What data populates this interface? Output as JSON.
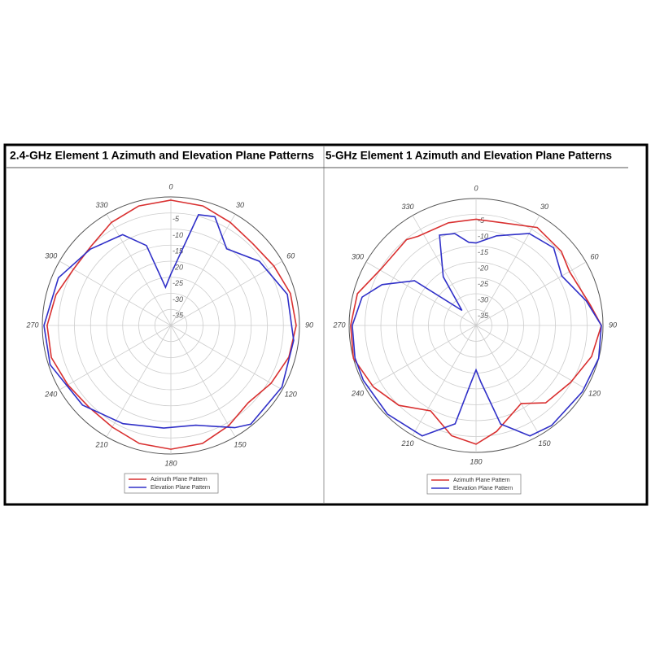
{
  "chart_data": [
    {
      "type": "polar",
      "title": "2.4-GHz Element 1 Azimuth and Elevation Plane Patterns",
      "rlim": [
        -40,
        0
      ],
      "rticks": [
        -5,
        -10,
        -15,
        -20,
        -25,
        -30,
        -35
      ],
      "thetaticks": [
        0,
        30,
        60,
        90,
        120,
        150,
        180,
        210,
        240,
        270,
        300,
        330
      ],
      "legend": "bottom",
      "series": [
        {
          "name": "Azimuth Plane Pattern",
          "color": "#d93030",
          "theta": [
            0,
            15,
            30,
            45,
            60,
            75,
            90,
            105,
            120,
            135,
            150,
            165,
            180,
            195,
            210,
            225,
            240,
            255,
            270,
            285,
            300,
            315,
            330,
            345
          ],
          "values": [
            -1,
            -1.5,
            -3,
            -4,
            -3,
            -1.5,
            -1,
            -2,
            -4,
            -6,
            -4,
            -2,
            -1.5,
            -2,
            -3.5,
            -4,
            -3,
            -1.5,
            -1.5,
            -3,
            -5,
            -5,
            -3,
            -1.5
          ]
        },
        {
          "name": "Elevation Plane Pattern",
          "color": "#3030c8",
          "theta": [
            0,
            14,
            22,
            36,
            54,
            75,
            97,
            119,
            141,
            148,
            166,
            184,
            206,
            228,
            252,
            270,
            293,
            313.5,
            332,
            343,
            352
          ],
          "values": [
            -24,
            -4.5,
            -3.5,
            -10.5,
            -6,
            -2.5,
            -1.5,
            -0.5,
            -0.5,
            -2.5,
            -8,
            -8,
            -6,
            -3,
            -0.5,
            -0.5,
            -2,
            -5.5,
            -8,
            -14,
            -28
          ]
        }
      ]
    },
    {
      "type": "polar",
      "title": "5-GHz Element 1 Azimuth and Elevation Plane Patterns",
      "rlim": [
        -40,
        0
      ],
      "rticks": [
        -5,
        -10,
        -15,
        -20,
        -25,
        -30,
        -35
      ],
      "thetaticks": [
        0,
        30,
        60,
        90,
        120,
        150,
        180,
        210,
        240,
        270,
        300,
        330
      ],
      "legend": "bottom",
      "series": [
        {
          "name": "Azimuth Plane Pattern",
          "color": "#d93030",
          "theta": [
            0,
            32,
            49,
            60,
            80,
            90,
            105,
            121,
            138,
            150,
            169,
            180,
            192.5,
            208,
            224,
            239,
            255,
            270,
            285,
            301,
            321,
            327,
            345
          ],
          "values": [
            -6.5,
            -3.6,
            -4.4,
            -6,
            -3.4,
            -0.5,
            -2.3,
            -5.2,
            -7.2,
            -11.6,
            -6,
            -2.6,
            -4.4,
            -9.5,
            -5,
            -2.3,
            0,
            -0.5,
            -1.3,
            -5.2,
            -5.2,
            -6.5,
            -6.5
          ]
        },
        {
          "name": "Elevation Plane Pattern",
          "color": "#3030c8",
          "theta": [
            0,
            13,
            30,
            45,
            60,
            77.5,
            90,
            105,
            122,
            143,
            154,
            166,
            175,
            180,
            185,
            192,
            206,
            225,
            244,
            255,
            270,
            284,
            293.5,
            306,
            317,
            326,
            338,
            347,
            355
          ],
          "values": [
            -14,
            -11,
            -6.5,
            -5.4,
            -8.8,
            -4.4,
            -0.5,
            0,
            -0.5,
            -0.5,
            -1.3,
            -8,
            -22,
            -26,
            -22,
            -8.3,
            -1.3,
            -0.5,
            -0.5,
            -0.5,
            -1,
            -3,
            -7.7,
            -16,
            -33.5,
            -21.5,
            -9.3,
            -10.3,
            -13.7
          ]
        }
      ]
    }
  ]
}
